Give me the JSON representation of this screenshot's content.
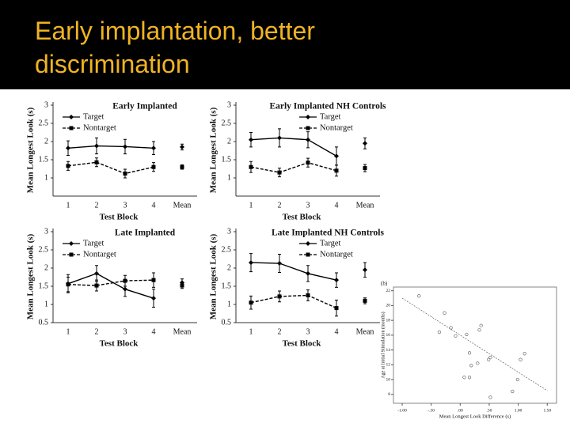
{
  "slide_title": "Early implantation, better discrimination",
  "chart_data": [
    {
      "type": "line",
      "title": "Early Implanted",
      "xlabel": "Test Block",
      "ylabel": "Mean Longest Look (s)",
      "categories": [
        "1",
        "2",
        "3",
        "4",
        "Mean"
      ],
      "ylim": [
        0.5,
        3
      ],
      "yticks": [
        1,
        1.5,
        2,
        2.5,
        3
      ],
      "legend": "upper left",
      "series": [
        {
          "name": "Target",
          "color": "#000000",
          "linestyle": "solid",
          "marker": "diamond",
          "values": [
            1.82,
            1.88,
            1.86,
            1.82,
            1.85
          ],
          "errors": [
            0.2,
            0.22,
            0.2,
            0.18,
            0.08
          ]
        },
        {
          "name": "Nontarget",
          "color": "#000000",
          "linestyle": "dashed",
          "marker": "square",
          "values": [
            1.33,
            1.43,
            1.12,
            1.3,
            1.3
          ],
          "errors": [
            0.12,
            0.12,
            0.12,
            0.12,
            0.06
          ]
        }
      ]
    },
    {
      "type": "line",
      "title": "Early Implanted NH Controls",
      "xlabel": "Test Block",
      "ylabel": "Mean Longest Look (s)",
      "categories": [
        "1",
        "2",
        "3",
        "4",
        "Mean"
      ],
      "ylim": [
        0.5,
        3
      ],
      "yticks": [
        1,
        1.5,
        2,
        2.5,
        3
      ],
      "legend": "upper right",
      "series": [
        {
          "name": "Target",
          "color": "#000000",
          "linestyle": "solid",
          "marker": "diamond",
          "values": [
            2.05,
            2.1,
            2.05,
            1.6,
            1.95
          ],
          "errors": [
            0.2,
            0.25,
            0.22,
            0.25,
            0.15
          ]
        },
        {
          "name": "Nontarget",
          "color": "#000000",
          "linestyle": "dashed",
          "marker": "square",
          "values": [
            1.3,
            1.15,
            1.42,
            1.2,
            1.27
          ],
          "errors": [
            0.15,
            0.12,
            0.12,
            0.15,
            0.1
          ]
        }
      ]
    },
    {
      "type": "line",
      "title": "Late Implanted",
      "xlabel": "Test Block",
      "ylabel": "Mean Longest Look (s)",
      "categories": [
        "1",
        "2",
        "3",
        "4",
        "Mean"
      ],
      "ylim": [
        0.5,
        3
      ],
      "yticks": [
        0.5,
        1,
        1.5,
        2,
        2.5,
        3
      ],
      "legend": "upper left",
      "series": [
        {
          "name": "Target",
          "color": "#000000",
          "linestyle": "solid",
          "marker": "diamond",
          "values": [
            1.57,
            1.85,
            1.42,
            1.17,
            1.6
          ],
          "errors": [
            0.25,
            0.22,
            0.2,
            0.25,
            0.1
          ]
        },
        {
          "name": "Nontarget",
          "color": "#000000",
          "linestyle": "dashed",
          "marker": "square",
          "values": [
            1.55,
            1.52,
            1.65,
            1.67,
            1.52
          ],
          "errors": [
            0.2,
            0.15,
            0.15,
            0.2,
            0.08
          ]
        }
      ]
    },
    {
      "type": "line",
      "title": "Late Implanted NH Controls",
      "xlabel": "Test Block",
      "ylabel": "Mean Longest Look (s)",
      "categories": [
        "1",
        "2",
        "3",
        "4",
        "Mean"
      ],
      "ylim": [
        0.5,
        3
      ],
      "yticks": [
        0.5,
        1,
        1.5,
        2,
        2.5,
        3
      ],
      "legend": "upper right",
      "series": [
        {
          "name": "Target",
          "color": "#000000",
          "linestyle": "solid",
          "marker": "diamond",
          "values": [
            2.15,
            2.13,
            1.85,
            1.67,
            1.95
          ],
          "errors": [
            0.25,
            0.25,
            0.22,
            0.2,
            0.2
          ]
        },
        {
          "name": "Nontarget",
          "color": "#000000",
          "linestyle": "dashed",
          "marker": "square",
          "values": [
            1.05,
            1.22,
            1.25,
            0.9,
            1.1
          ],
          "errors": [
            0.18,
            0.15,
            0.15,
            0.22,
            0.08
          ]
        }
      ]
    },
    {
      "type": "scatter",
      "panel_label": "(b)",
      "xlabel": "Mean Longest Look Difference (s)",
      "ylabel": "Age at Initial Stimulation (months)",
      "xlim": [
        -1.15,
        1.66
      ],
      "ylim": [
        6.8,
        22.5
      ],
      "xticks": [
        {
          "value": -1,
          "label": "-1.00"
        },
        {
          "value": -0.5,
          "label": "-.50"
        },
        {
          "value": 0,
          "label": ".00"
        },
        {
          "value": 0.5,
          "label": ".50"
        },
        {
          "value": 1,
          "label": "1.00"
        },
        {
          "value": 1.5,
          "label": "1.50"
        }
      ],
      "yticks": [
        8,
        10,
        12,
        14,
        16,
        18,
        20,
        22
      ],
      "color": "#555555",
      "x": [
        -0.71,
        -0.27,
        -0.36,
        -0.16,
        -0.08,
        0.11,
        0.36,
        0.33,
        0.16,
        0.19,
        0.07,
        0.16,
        0.3,
        0.49,
        0.52,
        1.04,
        1.11,
        0.52,
        0.9,
        0.99
      ],
      "y": [
        21.3,
        19.0,
        16.4,
        17.0,
        15.9,
        16.1,
        17.3,
        16.7,
        13.6,
        11.9,
        10.3,
        10.3,
        12.2,
        12.7,
        13.0,
        12.7,
        13.5,
        7.6,
        8.4,
        10.0
      ],
      "trendline": {
        "x": [
          -1.0,
          1.5
        ],
        "y": [
          21.0,
          8.5
        ]
      }
    }
  ]
}
